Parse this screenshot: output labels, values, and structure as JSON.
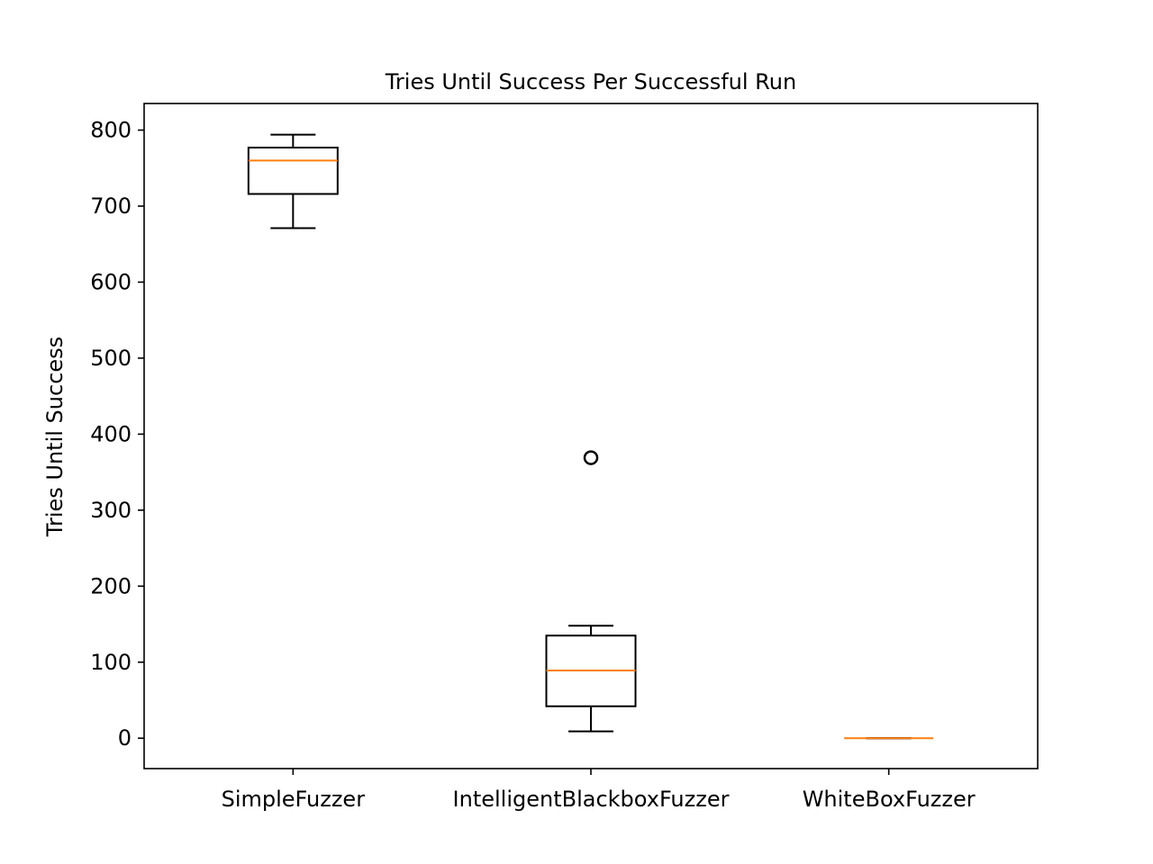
{
  "chart_data": {
    "type": "box",
    "title": "Tries Until Success Per Successful Run",
    "xlabel": "",
    "ylabel": "Tries Until Success",
    "ylim": [
      -40,
      835
    ],
    "yticks": [
      0,
      100,
      200,
      300,
      400,
      500,
      600,
      700,
      800
    ],
    "categories": [
      "SimpleFuzzer",
      "IntelligentBlackboxFuzzer",
      "WhiteBoxFuzzer"
    ],
    "boxes": [
      {
        "whisker_low": 671,
        "q1": 716,
        "median": 760,
        "q3": 777,
        "whisker_high": 794,
        "outliers": []
      },
      {
        "whisker_low": 9,
        "q1": 42,
        "median": 89,
        "q3": 135,
        "whisker_high": 148,
        "outliers": [
          369
        ]
      },
      {
        "whisker_low": 0,
        "q1": 0,
        "median": 0,
        "q3": 0,
        "whisker_high": 0,
        "outliers": []
      }
    ],
    "box_color": "#000000",
    "median_color": "#ff7f0e",
    "grid": false,
    "legend": "none"
  }
}
